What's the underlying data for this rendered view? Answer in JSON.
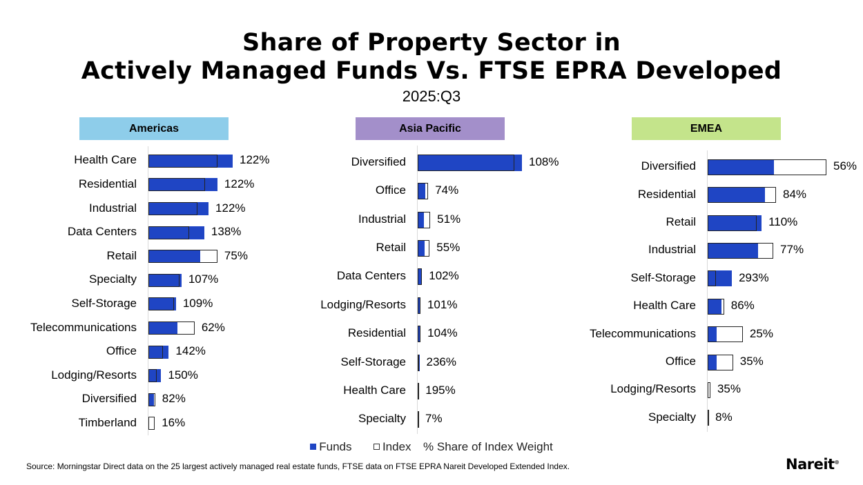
{
  "title_line1": "Share of Property Sector in",
  "title_line2": "Actively Managed Funds Vs. FTSE EPRA Developed",
  "subtitle": "2025:Q3",
  "legend": {
    "funds": "Funds",
    "index": "Index",
    "note": "% Share of Index Weight"
  },
  "source": "Source: Morningstar Direct data on the 25 largest actively managed real estate funds, FTSE data on FTSE EPRA Nareit Developed Extended Index.",
  "logo": "Nareit",
  "colors": {
    "funds": "#1f45c4",
    "index": "#ffffff",
    "americas": "#8ecdea",
    "asia_pacific": "#a38fca",
    "emea": "#c4e48b"
  },
  "chart_data": [
    {
      "type": "bar",
      "orientation": "horizontal",
      "title": "Americas",
      "categories": [
        "Health Care",
        "Residential",
        "Industrial",
        "Data Centers",
        "Retail",
        "Specialty",
        "Self-Storage",
        "Telecommunications",
        "Office",
        "Lodging/Resorts",
        "Diversified",
        "Timberland"
      ],
      "series": [
        {
          "name": "Funds",
          "values": [
            19.9,
            16.3,
            14.2,
            13.2,
            12.2,
            7.8,
            6.5,
            6.8,
            4.8,
            3.0,
            1.3,
            0.2
          ]
        },
        {
          "name": "Index",
          "values": [
            16.3,
            13.4,
            11.6,
            9.6,
            16.3,
            7.3,
            6.0,
            10.9,
            3.4,
            2.0,
            1.6,
            1.5
          ]
        }
      ],
      "data_labels": [
        "122%",
        "122%",
        "122%",
        "138%",
        "75%",
        "107%",
        "109%",
        "62%",
        "142%",
        "150%",
        "82%",
        "16%"
      ]
    },
    {
      "type": "bar",
      "orientation": "horizontal",
      "title": "Asia Pacific",
      "categories": [
        "Diversified",
        "Office",
        "Industrial",
        "Retail",
        "Data Centers",
        "Lodging/Resorts",
        "Residential",
        "Self-Storage",
        "Health Care",
        "Specialty"
      ],
      "series": [
        {
          "name": "Funds",
          "values": [
            72.4,
            5.4,
            4.4,
            4.6,
            3.0,
            1.9,
            2.0,
            1.2,
            0.6,
            0.03
          ]
        },
        {
          "name": "Index",
          "values": [
            67.0,
            7.3,
            8.7,
            8.3,
            2.9,
            1.9,
            1.9,
            0.5,
            0.3,
            0.4
          ]
        }
      ],
      "data_labels": [
        "108%",
        "74%",
        "51%",
        "55%",
        "102%",
        "101%",
        "104%",
        "236%",
        "195%",
        "7%"
      ]
    },
    {
      "type": "bar",
      "orientation": "horizontal",
      "title": "EMEA",
      "categories": [
        "Diversified",
        "Residential",
        "Retail",
        "Industrial",
        "Self-Storage",
        "Health Care",
        "Telecommunications",
        "Office",
        "Lodging/Resorts",
        "Specialty"
      ],
      "series": [
        {
          "name": "Funds",
          "values": [
            17.0,
            14.7,
            13.8,
            12.9,
            6.2,
            3.6,
            2.3,
            2.3,
            0.2,
            0.02
          ]
        },
        {
          "name": "Index",
          "values": [
            30.4,
            17.5,
            12.5,
            16.8,
            2.1,
            4.2,
            9.0,
            6.5,
            0.7,
            0.2
          ]
        }
      ],
      "data_labels": [
        "56%",
        "84%",
        "110%",
        "77%",
        "293%",
        "86%",
        "25%",
        "35%",
        "35%",
        "8%"
      ]
    }
  ]
}
